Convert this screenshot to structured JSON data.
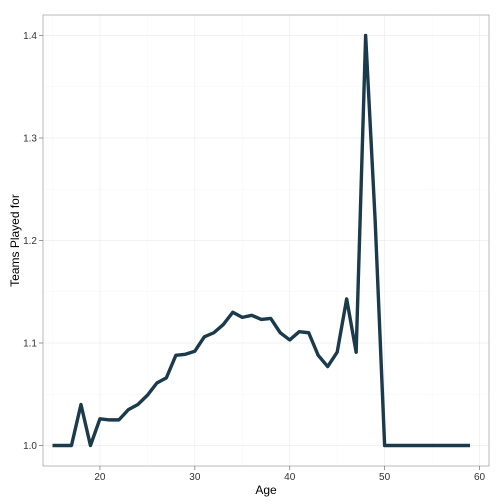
{
  "chart_data": {
    "type": "line",
    "xlabel": "Age",
    "ylabel": "Teams Played for",
    "xlim": [
      14.0,
      61.0
    ],
    "ylim": [
      0.98,
      1.42
    ],
    "xticks": [
      20,
      30,
      40,
      50,
      60
    ],
    "yticks": [
      1.0,
      1.1,
      1.2,
      1.3,
      1.4
    ],
    "grid": true,
    "line_color": "#1b3a4b",
    "series": [
      {
        "x": [
          15,
          16,
          17,
          18,
          19,
          20,
          21,
          22,
          23,
          24,
          25,
          26,
          27,
          28,
          29,
          30,
          31,
          32,
          33,
          34,
          35,
          36,
          37,
          38,
          39,
          40,
          41,
          42,
          43,
          44,
          45,
          46,
          47,
          48,
          49,
          50,
          51,
          52,
          53,
          54,
          55,
          56,
          57,
          58,
          59
        ],
        "values": [
          1.0,
          1.0,
          1.0,
          1.04,
          1.0,
          1.026,
          1.025,
          1.025,
          1.035,
          1.04,
          1.049,
          1.061,
          1.066,
          1.088,
          1.089,
          1.092,
          1.106,
          1.11,
          1.118,
          1.13,
          1.125,
          1.127,
          1.123,
          1.124,
          1.11,
          1.103,
          1.111,
          1.11,
          1.088,
          1.077,
          1.091,
          1.143,
          1.091,
          1.4,
          1.22,
          1.0,
          1.0,
          1.0,
          1.0,
          1.0,
          1.0,
          1.0,
          1.0,
          1.0,
          1.0
        ]
      }
    ]
  }
}
